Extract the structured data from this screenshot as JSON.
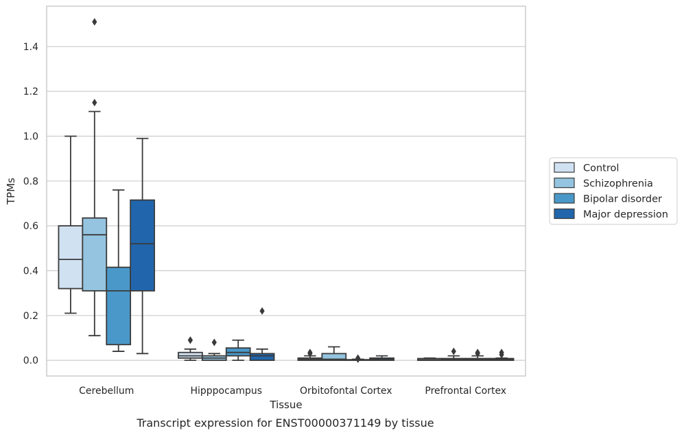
{
  "caption": "Transcript expression for ENST00000371149 by tissue",
  "chart_data": {
    "type": "box",
    "title": "",
    "xlabel": "Tissue",
    "ylabel": "TPMs",
    "ylim": [
      -0.07,
      1.58
    ],
    "yticks": [
      0.0,
      0.2,
      0.4,
      0.6,
      0.8,
      1.0,
      1.2,
      1.4
    ],
    "ytick_labels": [
      "0.0",
      "0.2",
      "0.4",
      "0.6",
      "0.8",
      "1.0",
      "1.2",
      "1.4"
    ],
    "categories": [
      "Cerebellum",
      "Hipppocampus",
      "Orbitofontal Cortex",
      "Prefrontal Cortex"
    ],
    "grid": true,
    "legend_position": "right",
    "series": [
      {
        "name": "Control",
        "color": "#d0e1f2",
        "boxes": [
          {
            "whislo": 0.21,
            "q1": 0.32,
            "med": 0.45,
            "q3": 0.6,
            "whishi": 1.0,
            "fliers": []
          },
          {
            "whislo": 0.0,
            "q1": 0.01,
            "med": 0.02,
            "q3": 0.035,
            "whishi": 0.05,
            "fliers": [
              0.09,
              0.09
            ]
          },
          {
            "whislo": 0.0,
            "q1": 0.0,
            "med": 0.005,
            "q3": 0.01,
            "whishi": 0.02,
            "fliers": [
              0.035,
              0.03
            ]
          },
          {
            "whislo": 0.0,
            "q1": 0.0,
            "med": 0.002,
            "q3": 0.008,
            "whishi": 0.01,
            "fliers": []
          }
        ]
      },
      {
        "name": "Schizophrenia",
        "color": "#94c4df",
        "boxes": [
          {
            "whislo": 0.11,
            "q1": 0.31,
            "med": 0.56,
            "q3": 0.635,
            "whishi": 1.11,
            "fliers": [
              1.15,
              1.51
            ]
          },
          {
            "whislo": 0.0,
            "q1": 0.0,
            "med": 0.01,
            "q3": 0.02,
            "whishi": 0.03,
            "fliers": [
              0.08
            ]
          },
          {
            "whislo": 0.0,
            "q1": 0.0,
            "med": 0.005,
            "q3": 0.03,
            "whishi": 0.06,
            "fliers": []
          },
          {
            "whislo": 0.0,
            "q1": 0.0,
            "med": 0.003,
            "q3": 0.008,
            "whishi": 0.02,
            "fliers": [
              0.04
            ]
          }
        ]
      },
      {
        "name": "Bipolar disorder",
        "color": "#4a98c9",
        "boxes": [
          {
            "whislo": 0.04,
            "q1": 0.07,
            "med": 0.31,
            "q3": 0.415,
            "whishi": 0.76,
            "fliers": []
          },
          {
            "whislo": 0.0,
            "q1": 0.02,
            "med": 0.035,
            "q3": 0.055,
            "whishi": 0.09,
            "fliers": []
          },
          {
            "whislo": 0.0,
            "q1": 0.0,
            "med": 0.001,
            "q3": 0.003,
            "whishi": 0.005,
            "fliers": [
              0.01,
              0.005
            ]
          },
          {
            "whislo": 0.0,
            "q1": 0.0,
            "med": 0.003,
            "q3": 0.008,
            "whishi": 0.02,
            "fliers": [
              0.035,
              0.03
            ]
          }
        ]
      },
      {
        "name": "Major depression",
        "color": "#2166ac",
        "boxes": [
          {
            "whislo": 0.03,
            "q1": 0.31,
            "med": 0.52,
            "q3": 0.715,
            "whishi": 0.99,
            "fliers": []
          },
          {
            "whislo": 0.0,
            "q1": 0.0,
            "med": 0.02,
            "q3": 0.03,
            "whishi": 0.05,
            "fliers": [
              0.22
            ]
          },
          {
            "whislo": 0.0,
            "q1": 0.0,
            "med": 0.005,
            "q3": 0.01,
            "whishi": 0.02,
            "fliers": []
          },
          {
            "whislo": 0.0,
            "q1": 0.0,
            "med": 0.003,
            "q3": 0.008,
            "whishi": 0.01,
            "fliers": [
              0.035,
              0.025
            ]
          }
        ]
      }
    ]
  }
}
